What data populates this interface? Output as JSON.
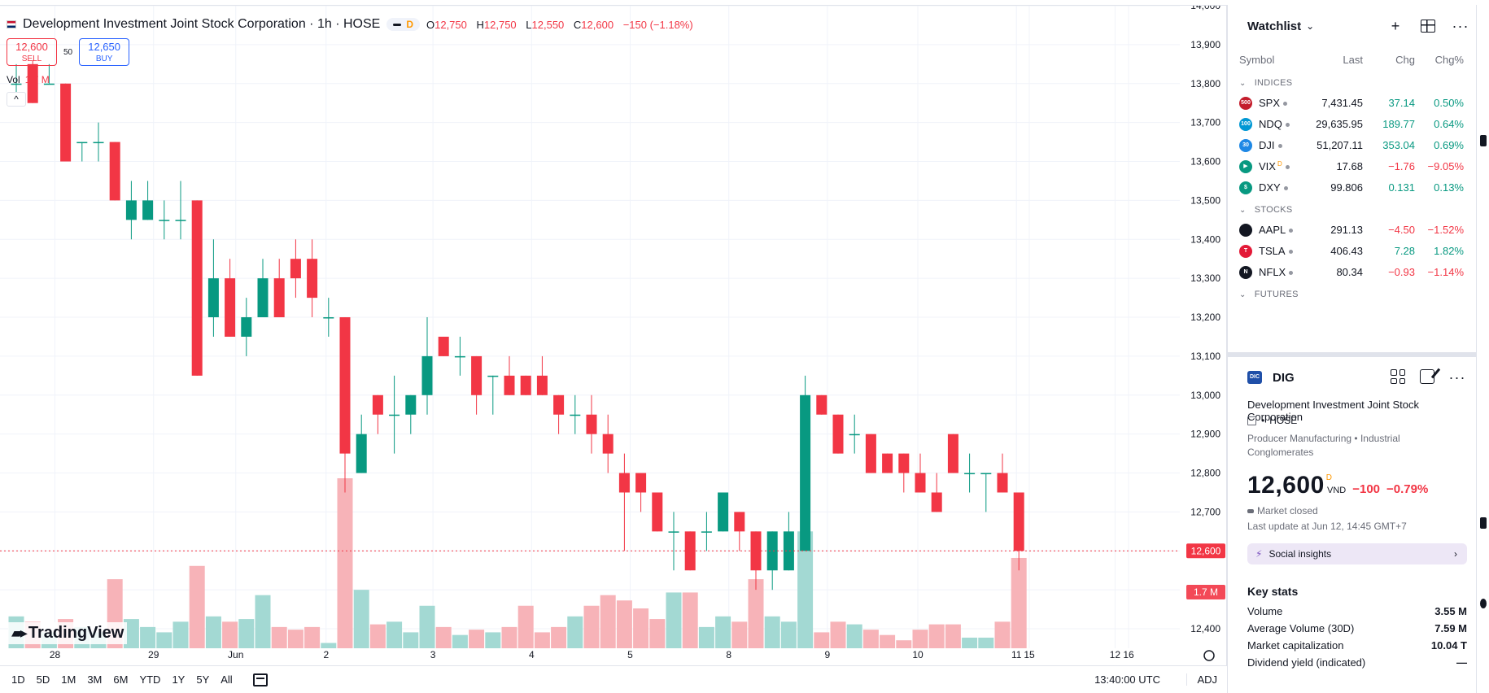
{
  "symbol_header": {
    "title": "Development Investment Joint Stock Corporation · 1h · HOSE",
    "pill_flag": "D",
    "ohlc": {
      "o_label": "O",
      "o": "12,750",
      "h_label": "H",
      "h": "12,750",
      "l_label": "L",
      "l": "12,550",
      "c_label": "C",
      "c": "12,600",
      "change": "−150 (−1.18%)"
    }
  },
  "trade": {
    "sell_price": "12,600",
    "sell_label": "SELL",
    "spread": "50",
    "buy_price": "12,650",
    "buy_label": "BUY"
  },
  "volume_legend": {
    "label": "Vol",
    "value": "1.7 M"
  },
  "collapse_glyph": "^",
  "logo_text": "TradingView",
  "chart_data": {
    "type": "candlestick",
    "interval": "1h",
    "ylim": [
      12350,
      14000
    ],
    "y_ticks": [
      12400,
      12500,
      12600,
      12700,
      12800,
      12900,
      13000,
      13100,
      13200,
      13300,
      13400,
      13500,
      13600,
      13700,
      13800,
      13900,
      14000
    ],
    "y_tick_labels": [
      "12,400",
      "12,500",
      "12,600",
      "12,700",
      "12,800",
      "12,900",
      "13,000",
      "13,100",
      "13,200",
      "13,300",
      "13,400",
      "13,500",
      "13,600",
      "13,700",
      "13,800",
      "13,900",
      "14,000"
    ],
    "x_labels": [
      "28",
      "29",
      "Jun",
      "2",
      "3",
      "4",
      "5",
      "8",
      "9",
      "10",
      "11",
      "12",
      "15",
      "16"
    ],
    "last_price_label": "12,600",
    "last_volume_label": "1.7 M",
    "colors": {
      "up": "#089981",
      "down": "#f23645",
      "vol_up": "#a3d9d3",
      "vol_down": "#f7b3b8"
    },
    "candles": [
      {
        "o": 13800,
        "h": 13850,
        "l": 13750,
        "c": 13800,
        "v": 0.6
      },
      {
        "o": 13850,
        "h": 13860,
        "l": 13750,
        "c": 13750,
        "v": 0.5
      },
      {
        "o": 13800,
        "h": 13850,
        "l": 13800,
        "c": 13800,
        "v": 0.3
      },
      {
        "o": 13800,
        "h": 13800,
        "l": 13600,
        "c": 13600,
        "v": 0.55
      },
      {
        "o": 13650,
        "h": 13650,
        "l": 13600,
        "c": 13650,
        "v": 0.4
      },
      {
        "o": 13650,
        "h": 13700,
        "l": 13600,
        "c": 13650,
        "v": 0.3
      },
      {
        "o": 13650,
        "h": 13650,
        "l": 13500,
        "c": 13500,
        "v": 1.3
      },
      {
        "o": 13450,
        "h": 13550,
        "l": 13400,
        "c": 13500,
        "v": 0.55
      },
      {
        "o": 13450,
        "h": 13550,
        "l": 13450,
        "c": 13500,
        "v": 0.4
      },
      {
        "o": 13450,
        "h": 13500,
        "l": 13400,
        "c": 13450,
        "v": 0.3
      },
      {
        "o": 13450,
        "h": 13550,
        "l": 13400,
        "c": 13450,
        "v": 0.5
      },
      {
        "o": 13500,
        "h": 13500,
        "l": 13050,
        "c": 13050,
        "v": 1.55
      },
      {
        "o": 13200,
        "h": 13400,
        "l": 13150,
        "c": 13300,
        "v": 0.6
      },
      {
        "o": 13300,
        "h": 13350,
        "l": 13150,
        "c": 13150,
        "v": 0.5
      },
      {
        "o": 13150,
        "h": 13250,
        "l": 13100,
        "c": 13200,
        "v": 0.55
      },
      {
        "o": 13200,
        "h": 13350,
        "l": 13200,
        "c": 13300,
        "v": 1.0
      },
      {
        "o": 13300,
        "h": 13350,
        "l": 13200,
        "c": 13200,
        "v": 0.4
      },
      {
        "o": 13350,
        "h": 13400,
        "l": 13250,
        "c": 13300,
        "v": 0.35
      },
      {
        "o": 13350,
        "h": 13400,
        "l": 13200,
        "c": 13250,
        "v": 0.4
      },
      {
        "o": 13200,
        "h": 13250,
        "l": 13150,
        "c": 13200,
        "v": 0.1
      },
      {
        "o": 13200,
        "h": 13200,
        "l": 12750,
        "c": 12850,
        "v": 3.2
      },
      {
        "o": 12800,
        "h": 12950,
        "l": 12800,
        "c": 12900,
        "v": 1.1
      },
      {
        "o": 13000,
        "h": 13000,
        "l": 12900,
        "c": 12950,
        "v": 0.45
      },
      {
        "o": 12950,
        "h": 13050,
        "l": 12850,
        "c": 12950,
        "v": 0.5
      },
      {
        "o": 12950,
        "h": 13000,
        "l": 12900,
        "c": 13000,
        "v": 0.3
      },
      {
        "o": 13000,
        "h": 13200,
        "l": 12950,
        "c": 13100,
        "v": 0.8
      },
      {
        "o": 13150,
        "h": 13150,
        "l": 13100,
        "c": 13100,
        "v": 0.4
      },
      {
        "o": 13100,
        "h": 13150,
        "l": 13050,
        "c": 13100,
        "v": 0.25
      },
      {
        "o": 13100,
        "h": 13100,
        "l": 12950,
        "c": 13000,
        "v": 0.35
      },
      {
        "o": 13050,
        "h": 13050,
        "l": 12950,
        "c": 13050,
        "v": 0.3
      },
      {
        "o": 13050,
        "h": 13100,
        "l": 13000,
        "c": 13000,
        "v": 0.4
      },
      {
        "o": 13050,
        "h": 13050,
        "l": 13000,
        "c": 13000,
        "v": 0.8
      },
      {
        "o": 13050,
        "h": 13100,
        "l": 13000,
        "c": 13000,
        "v": 0.3
      },
      {
        "o": 13000,
        "h": 13000,
        "l": 12900,
        "c": 12950,
        "v": 0.4
      },
      {
        "o": 12950,
        "h": 13000,
        "l": 12900,
        "c": 12950,
        "v": 0.6
      },
      {
        "o": 12950,
        "h": 13000,
        "l": 12850,
        "c": 12900,
        "v": 0.8
      },
      {
        "o": 12900,
        "h": 12950,
        "l": 12800,
        "c": 12850,
        "v": 1.0
      },
      {
        "o": 12800,
        "h": 12850,
        "l": 12600,
        "c": 12750,
        "v": 0.9
      },
      {
        "o": 12800,
        "h": 12800,
        "l": 12700,
        "c": 12750,
        "v": 0.75
      },
      {
        "o": 12750,
        "h": 12750,
        "l": 12650,
        "c": 12650,
        "v": 0.55
      },
      {
        "o": 12650,
        "h": 12700,
        "l": 12550,
        "c": 12650,
        "v": 1.05
      },
      {
        "o": 12650,
        "h": 12650,
        "l": 12550,
        "c": 12550,
        "v": 1.05
      },
      {
        "o": 12650,
        "h": 12700,
        "l": 12600,
        "c": 12650,
        "v": 0.4
      },
      {
        "o": 12650,
        "h": 12750,
        "l": 12650,
        "c": 12750,
        "v": 0.6
      },
      {
        "o": 12700,
        "h": 12700,
        "l": 12600,
        "c": 12650,
        "v": 0.5
      },
      {
        "o": 12650,
        "h": 12650,
        "l": 12500,
        "c": 12550,
        "v": 1.3
      },
      {
        "o": 12550,
        "h": 12650,
        "l": 12500,
        "c": 12650,
        "v": 0.6
      },
      {
        "o": 12550,
        "h": 12700,
        "l": 12550,
        "c": 12650,
        "v": 0.5
      },
      {
        "o": 12600,
        "h": 13050,
        "l": 12600,
        "c": 13000,
        "v": 2.2
      },
      {
        "o": 13000,
        "h": 13000,
        "l": 12950,
        "c": 12950,
        "v": 0.3
      },
      {
        "o": 12950,
        "h": 12950,
        "l": 12850,
        "c": 12850,
        "v": 0.5
      },
      {
        "o": 12900,
        "h": 12950,
        "l": 12850,
        "c": 12900,
        "v": 0.45
      },
      {
        "o": 12900,
        "h": 12900,
        "l": 12800,
        "c": 12800,
        "v": 0.35
      },
      {
        "o": 12850,
        "h": 12850,
        "l": 12800,
        "c": 12800,
        "v": 0.25
      },
      {
        "o": 12850,
        "h": 12850,
        "l": 12750,
        "c": 12800,
        "v": 0.15
      },
      {
        "o": 12800,
        "h": 12850,
        "l": 12750,
        "c": 12750,
        "v": 0.35
      },
      {
        "o": 12750,
        "h": 12800,
        "l": 12700,
        "c": 12700,
        "v": 0.45
      },
      {
        "o": 12900,
        "h": 12900,
        "l": 12800,
        "c": 12800,
        "v": 0.45
      },
      {
        "o": 12800,
        "h": 12850,
        "l": 12750,
        "c": 12800,
        "v": 0.2
      },
      {
        "o": 12800,
        "h": 12800,
        "l": 12700,
        "c": 12800,
        "v": 0.2
      },
      {
        "o": 12800,
        "h": 12850,
        "l": 12750,
        "c": 12750,
        "v": 0.5
      },
      {
        "o": 12750,
        "h": 12750,
        "l": 12550,
        "c": 12600,
        "v": 1.7
      }
    ],
    "session_boundaries": [
      3,
      8,
      13,
      19,
      25,
      31,
      37,
      43,
      48,
      54,
      60
    ]
  },
  "bottom_bar": {
    "ranges": [
      "1D",
      "5D",
      "1M",
      "3M",
      "6M",
      "YTD",
      "1Y",
      "5Y",
      "All"
    ],
    "time": "13:40:00 UTC",
    "adj": "ADJ"
  },
  "watchlist": {
    "title": "Watchlist",
    "columns": {
      "symbol": "Symbol",
      "last": "Last",
      "chg": "Chg",
      "chgp": "Chg%"
    },
    "sections": [
      {
        "label": "INDICES",
        "rows": [
          {
            "logo": "500",
            "logo_color": "#c41d2c",
            "symbol": "SPX",
            "sup": "",
            "last": "7,431.45",
            "chg": "37.14",
            "chgp": "0.50%",
            "dir": "pos"
          },
          {
            "logo": "100",
            "logo_color": "#0098d4",
            "symbol": "NDQ",
            "sup": "",
            "last": "29,635.95",
            "chg": "189.77",
            "chgp": "0.64%",
            "dir": "pos"
          },
          {
            "logo": "30",
            "logo_color": "#1e88e5",
            "symbol": "DJI",
            "sup": "",
            "last": "51,207.11",
            "chg": "353.04",
            "chgp": "0.69%",
            "dir": "pos"
          },
          {
            "logo": "▶",
            "logo_color": "#089981",
            "symbol": "VIX",
            "sup": "D",
            "last": "17.68",
            "chg": "−1.76",
            "chgp": "−9.05%",
            "dir": "neg"
          },
          {
            "logo": "$",
            "logo_color": "#089981",
            "symbol": "DXY",
            "sup": "",
            "last": "99.806",
            "chg": "0.131",
            "chgp": "0.13%",
            "dir": "pos"
          }
        ]
      },
      {
        "label": "STOCKS",
        "rows": [
          {
            "logo": "",
            "logo_color": "#131722",
            "symbol": "AAPL",
            "sup": "",
            "last": "291.13",
            "chg": "−4.50",
            "chgp": "−1.52%",
            "dir": "neg"
          },
          {
            "logo": "T",
            "logo_color": "#e31937",
            "symbol": "TSLA",
            "sup": "",
            "last": "406.43",
            "chg": "7.28",
            "chgp": "1.82%",
            "dir": "pos"
          },
          {
            "logo": "N",
            "logo_color": "#131722",
            "symbol": "NFLX",
            "sup": "",
            "last": "80.34",
            "chg": "−0.93",
            "chgp": "−1.14%",
            "dir": "neg"
          }
        ]
      },
      {
        "label": "FUTURES",
        "rows": []
      }
    ]
  },
  "details": {
    "logo": "DIC",
    "symbol": "DIG",
    "name": "Development Investment Joint Stock Corporation",
    "exchange": "HOSE",
    "sector": "Producer Manufacturing",
    "sector_sep": "•",
    "industry": "Industrial Conglomerates",
    "price": "12,600",
    "price_sup": "D",
    "currency": "VND",
    "change": "−100",
    "change_pct": "−0.79%",
    "market_status": "Market closed",
    "last_update": "Last update at Jun 12, 14:45 GMT+7",
    "social": "Social insights",
    "key_stats_title": "Key stats",
    "key_stats": [
      {
        "label": "Volume",
        "value": "3.55 M"
      },
      {
        "label": "Average Volume (30D)",
        "value": "7.59 M"
      },
      {
        "label": "Market capitalization",
        "value": "10.04 T"
      },
      {
        "label": "Dividend yield (indicated)",
        "value": "—"
      }
    ]
  }
}
